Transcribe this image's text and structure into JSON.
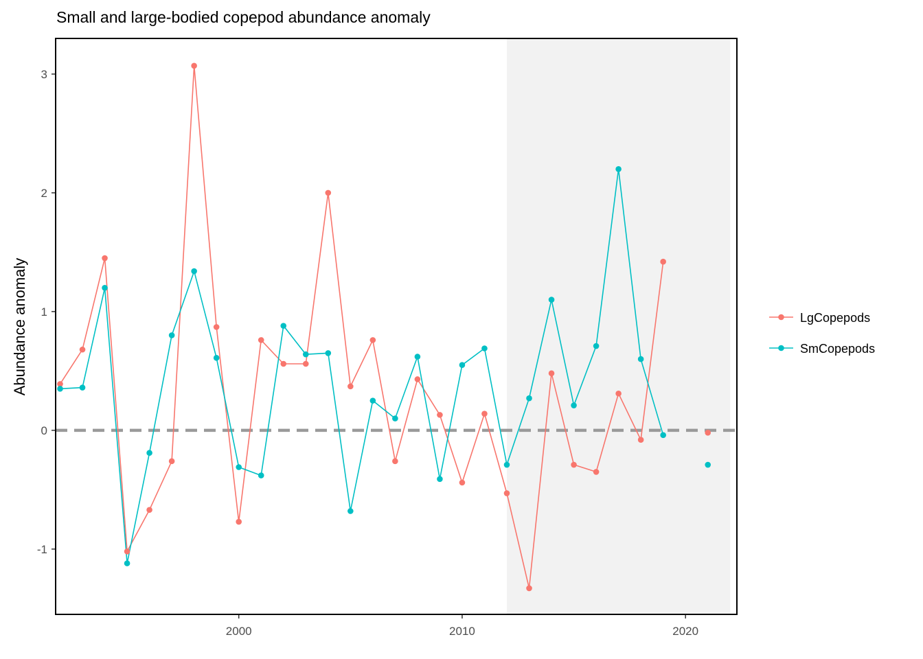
{
  "chart_data": {
    "type": "line",
    "title": "Small and large-bodied copepod abundance anomaly",
    "xlabel": "",
    "ylabel": "Abundance anomaly",
    "xlim": [
      1991.8,
      2022.3
    ],
    "ylim": [
      -1.55,
      3.3
    ],
    "x_ticks": [
      2000,
      2010,
      2020
    ],
    "y_ticks": [
      -1,
      0,
      1,
      2,
      3
    ],
    "grid": false,
    "reference_line": {
      "y": 0,
      "style": "dashed",
      "color": "#9a9a9a"
    },
    "shaded_region": {
      "x": [
        2012,
        2022
      ],
      "color": "#f2f2f2"
    },
    "legend_position": "right",
    "series": [
      {
        "name": "LgCopepods",
        "color": "#F8766D",
        "points": [
          [
            1992,
            0.39
          ],
          [
            1993,
            0.68
          ],
          [
            1994,
            1.45
          ],
          [
            1995,
            -1.02
          ],
          [
            1996,
            -0.67
          ],
          [
            1997,
            -0.26
          ],
          [
            1998,
            3.07
          ],
          [
            1999,
            0.87
          ],
          [
            2000,
            -0.77
          ],
          [
            2001,
            0.76
          ],
          [
            2002,
            0.56
          ],
          [
            2003,
            0.56
          ],
          [
            2004,
            2.0
          ],
          [
            2005,
            0.37
          ],
          [
            2006,
            0.76
          ],
          [
            2007,
            -0.26
          ],
          [
            2008,
            0.43
          ],
          [
            2009,
            0.13
          ],
          [
            2010,
            -0.44
          ],
          [
            2011,
            0.14
          ],
          [
            2012,
            -0.53
          ],
          [
            2013,
            -1.33
          ],
          [
            2014,
            0.48
          ],
          [
            2015,
            -0.29
          ],
          [
            2016,
            -0.35
          ],
          [
            2017,
            0.31
          ],
          [
            2018,
            -0.08
          ],
          [
            2019,
            1.42
          ],
          [
            2021,
            -0.02
          ]
        ]
      },
      {
        "name": "SmCopepods",
        "color": "#00BFC4",
        "points": [
          [
            1992,
            0.35
          ],
          [
            1993,
            0.36
          ],
          [
            1994,
            1.2
          ],
          [
            1995,
            -1.12
          ],
          [
            1996,
            -0.19
          ],
          [
            1997,
            0.8
          ],
          [
            1998,
            1.34
          ],
          [
            1999,
            0.61
          ],
          [
            2000,
            -0.31
          ],
          [
            2001,
            -0.38
          ],
          [
            2002,
            0.88
          ],
          [
            2003,
            0.64
          ],
          [
            2004,
            0.65
          ],
          [
            2005,
            -0.68
          ],
          [
            2006,
            0.25
          ],
          [
            2007,
            0.1
          ],
          [
            2008,
            0.62
          ],
          [
            2009,
            -0.41
          ],
          [
            2010,
            0.55
          ],
          [
            2011,
            0.69
          ],
          [
            2012,
            -0.29
          ],
          [
            2013,
            0.27
          ],
          [
            2014,
            1.1
          ],
          [
            2015,
            0.21
          ],
          [
            2016,
            0.71
          ],
          [
            2017,
            2.2
          ],
          [
            2018,
            0.6
          ],
          [
            2019,
            -0.04
          ],
          [
            2021,
            -0.29
          ]
        ]
      }
    ]
  }
}
